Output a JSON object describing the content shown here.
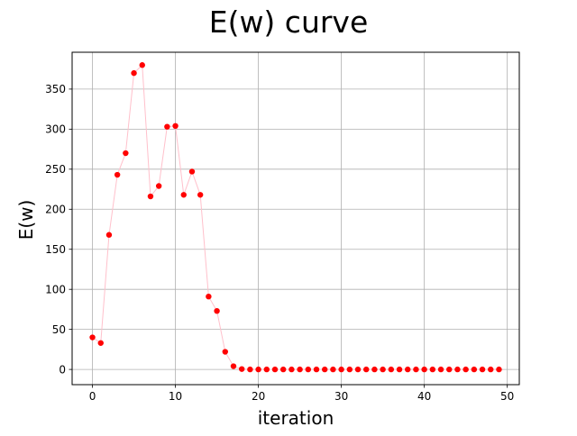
{
  "chart_data": {
    "type": "line",
    "title": "E(w) curve",
    "xlabel": "iteration",
    "ylabel": "E(w)",
    "xlim": [
      -2.45,
      51.45
    ],
    "ylim": [
      -19,
      396
    ],
    "grid": true,
    "x_ticks": [
      0,
      10,
      20,
      30,
      40,
      50
    ],
    "y_ticks": [
      0,
      50,
      100,
      150,
      200,
      250,
      300,
      350
    ],
    "line_color": "#ffc0cb",
    "marker_color": "#ff0000",
    "series": [
      {
        "x": [
          0,
          1,
          2,
          3,
          4,
          5,
          6,
          7,
          8,
          9,
          10,
          11,
          12,
          13,
          14,
          15,
          16,
          17,
          18,
          19,
          20,
          21,
          22,
          23,
          24,
          25,
          26,
          27,
          28,
          29,
          30,
          31,
          32,
          33,
          34,
          35,
          36,
          37,
          38,
          39,
          40,
          41,
          42,
          43,
          44,
          45,
          46,
          47,
          48,
          49
        ],
        "values": [
          40,
          33,
          168,
          243,
          270,
          370,
          380,
          216,
          229,
          303,
          304,
          218,
          247,
          218,
          91,
          73,
          22,
          4,
          0.5,
          0,
          0,
          0,
          0,
          0,
          0,
          0,
          0,
          0,
          0,
          0,
          0,
          0,
          0,
          0,
          0,
          0,
          0,
          0,
          0,
          0,
          0,
          0,
          0,
          0,
          0,
          0,
          0,
          0,
          0,
          0
        ]
      }
    ]
  }
}
